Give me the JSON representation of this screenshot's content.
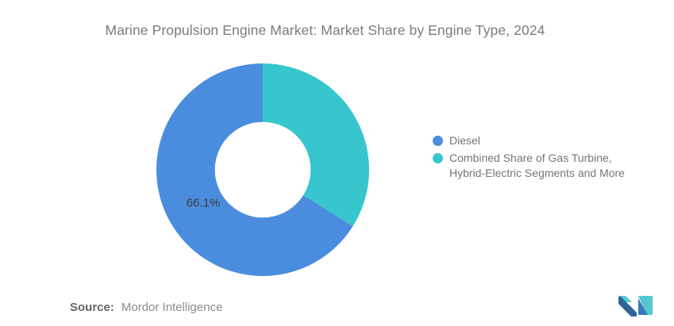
{
  "title": "Marine Propulsion Engine Market: Market Share by Engine Type, 2024",
  "chart_data": {
    "type": "pie",
    "subtype": "donut",
    "title": "Marine Propulsion Engine Market: Market Share by Engine Type, 2024",
    "series": [
      {
        "name": "Diesel",
        "value": 66.1,
        "color": "#4A8DDE",
        "data_label": "66.1%"
      },
      {
        "name": "Combined Share of Gas Turbine, Hybrid-Electric Segments and More",
        "value": 33.9,
        "color": "#38C6CE",
        "data_label": ""
      }
    ],
    "values_unit": "%",
    "start_angle_deg": 122.04,
    "inner_radius_ratio": 0.45,
    "legend_position": "right",
    "label_color": "#3c3c3c"
  },
  "legend": {
    "items": [
      {
        "label": "Diesel",
        "color": "#4A8DDE"
      },
      {
        "label": "Combined Share of Gas Turbine,\nHybrid-Electric Segments and More",
        "color": "#38C6CE"
      }
    ]
  },
  "source": {
    "prefix": "Source:",
    "text": "Mordor Intelligence"
  },
  "logo": {
    "name": "mordor-intelligence-logo",
    "teal": "#54C7CF",
    "navy": "#2E6597",
    "blue": "#3679BC"
  }
}
